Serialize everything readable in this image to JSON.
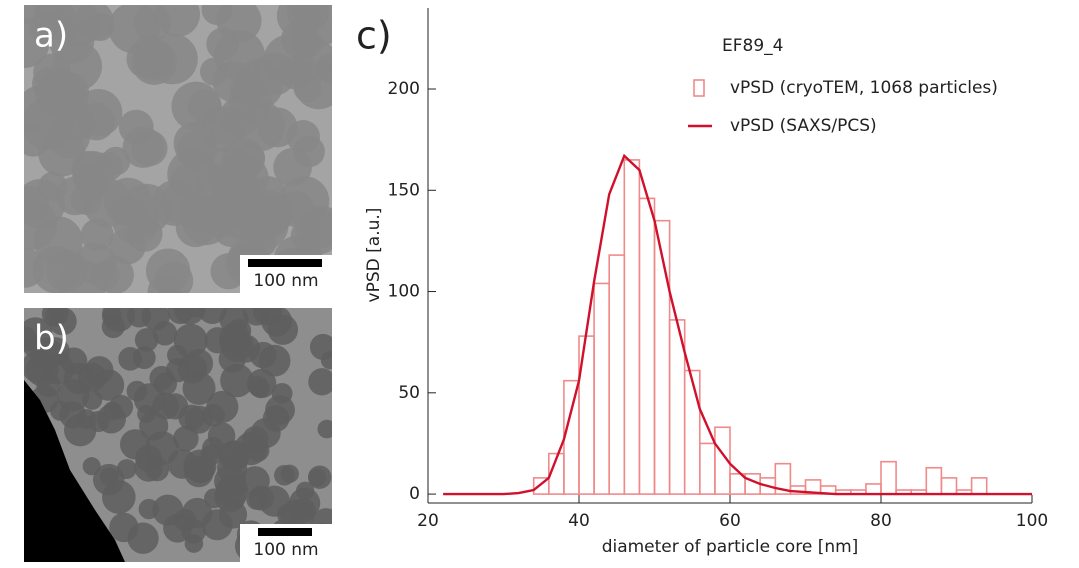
{
  "panels": [
    {
      "label": "a)",
      "scale_bar": "100 nm"
    },
    {
      "label": "b)",
      "scale_bar": "100 nm"
    }
  ],
  "chart_data": {
    "type": "histogram",
    "panel_label": "c)",
    "x_label": "diameter of particle core [nm]",
    "y_label": "vPSD [a.u.]",
    "legend_title": "EF89_4",
    "legend": "upper right",
    "xlim": [
      20,
      100
    ],
    "xticks": [
      20,
      40,
      60,
      80,
      100
    ],
    "ylim": [
      -4.4,
      240
    ],
    "yticks": [
      0,
      50,
      100,
      150,
      200
    ],
    "bins": [
      34,
      36,
      38,
      40,
      42,
      44,
      46,
      48,
      50,
      52,
      54,
      56,
      58,
      60,
      62,
      64,
      66,
      68,
      70,
      72,
      74,
      76,
      78,
      80,
      82,
      84,
      86,
      88,
      90,
      92,
      94
    ],
    "series": [
      {
        "name": "vPSD (cryoTEM, 1068 particles)",
        "color": "#f08a8a",
        "values": [
          8,
          20,
          56,
          78,
          104,
          118,
          165,
          146,
          135,
          86,
          61,
          25,
          33,
          10,
          10,
          8,
          15,
          4,
          7,
          4,
          2,
          2,
          5,
          16,
          2,
          2,
          13,
          8,
          2,
          8
        ]
      },
      {
        "name": "vPSD (SAXS/PCS)",
        "type": "line",
        "color": "#d0102c",
        "x": [
          22,
          24,
          26,
          28,
          30,
          32,
          34,
          36,
          38,
          40,
          42,
          44,
          46,
          48,
          50,
          52,
          54,
          56,
          58,
          60,
          62,
          64,
          66,
          68,
          70,
          72,
          74,
          76,
          80,
          90,
          100
        ],
        "values": [
          0,
          0,
          0,
          0,
          0,
          0.5,
          2,
          8,
          27,
          56,
          105,
          148,
          167,
          160,
          135,
          100,
          70,
          42,
          25,
          15,
          8,
          5,
          3,
          1.5,
          1,
          0.5,
          0,
          0,
          0,
          0,
          0
        ]
      }
    ]
  }
}
